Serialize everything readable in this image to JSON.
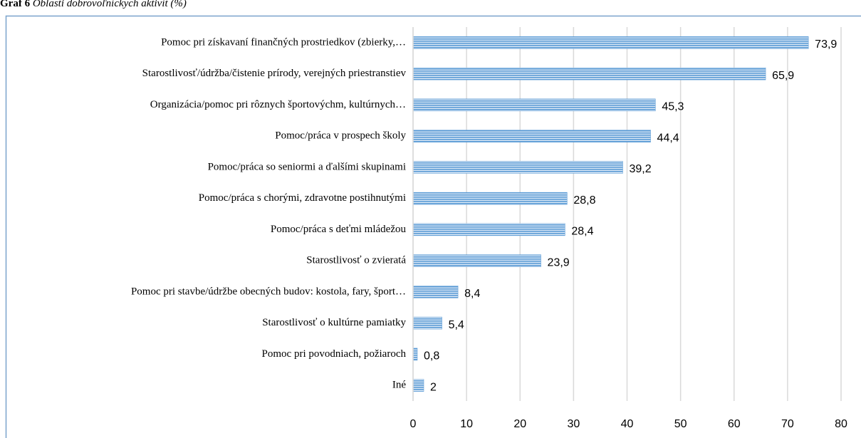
{
  "chart_data": {
    "type": "barh",
    "title_prefix": "Graf 6",
    "title": "Oblasti dobrovoľníckych aktivít (%)",
    "categories": [
      "Pomoc pri získavaní finančných prostriedkov (zbierky,…",
      "Starostlivosť/údržba/čistenie prírody, verejných priestranstiev",
      "Organizácia/pomoc pri rôznych športovýchm, kultúrnych…",
      "Pomoc/práca v prospech školy",
      "Pomoc/práca so seniormi a ďalšími skupinami",
      "Pomoc/práca s chorými, zdravotne postihnutými",
      "Pomoc/práca s deťmi mládežou",
      "Starostlivosť o zvieratá",
      "Pomoc pri stavbe/údržbe obecných budov: kostola, fary, šport…",
      "Starostlivosť o kultúrne pamiatky",
      "Pomoc pri povodniach, požiaroch",
      "Iné"
    ],
    "values": [
      73.9,
      65.9,
      45.3,
      44.4,
      39.2,
      28.8,
      28.4,
      23.9,
      8.4,
      5.4,
      0.8,
      2
    ],
    "value_labels": [
      "73,9",
      "65,9",
      "45,3",
      "44,4",
      "39,2",
      "28,8",
      "28,4",
      "23,9",
      "8,4",
      "5,4",
      "0,8",
      "2"
    ],
    "color": "#5b9bd5",
    "xlim": [
      0,
      80
    ],
    "xticks": [
      0,
      10,
      20,
      30,
      40,
      50,
      60,
      70,
      80
    ],
    "grid": true
  }
}
